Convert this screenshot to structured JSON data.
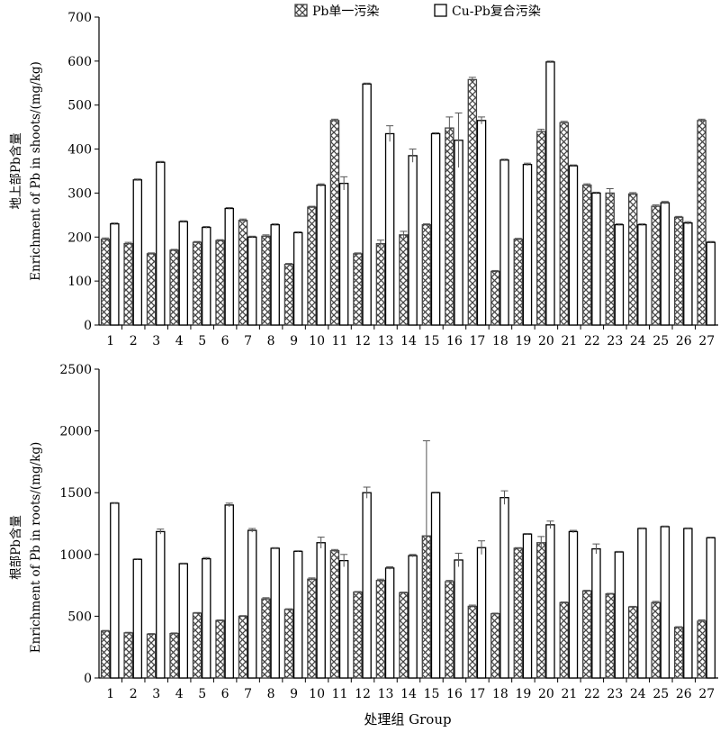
{
  "legend": [
    "Pb单一污染",
    "Cu-Pb复合污染"
  ],
  "xlabel": "处理组 Group",
  "chart_data": [
    {
      "type": "bar",
      "ylabel": [
        "地上部Pb含量",
        "Enrichment of Pb in shoots/(mg/kg)"
      ],
      "ylim": [
        0,
        700
      ],
      "yticks": [
        0,
        100,
        200,
        300,
        400,
        500,
        600,
        700
      ],
      "categories": [
        "1",
        "2",
        "3",
        "4",
        "5",
        "6",
        "7",
        "8",
        "9",
        "10",
        "11",
        "12",
        "13",
        "14",
        "15",
        "16",
        "17",
        "18",
        "19",
        "20",
        "21",
        "22",
        "23",
        "24",
        "25",
        "26",
        "27"
      ],
      "series": [
        {
          "name": "Pb单一污染",
          "pattern": "crosshatch",
          "values": [
            195,
            185,
            162,
            170,
            188,
            192,
            238,
            202,
            138,
            268,
            465,
            162,
            185,
            205,
            228,
            448,
            558,
            122,
            195,
            440,
            460,
            318,
            300,
            298,
            270,
            245,
            465
          ],
          "errors": [
            3,
            3,
            2,
            2,
            2,
            2,
            3,
            3,
            2,
            2,
            3,
            2,
            8,
            8,
            2,
            25,
            5,
            2,
            2,
            5,
            3,
            3,
            10,
            3,
            3,
            2,
            3
          ]
        },
        {
          "name": "Cu-Pb复合污染",
          "pattern": "open",
          "values": [
            230,
            330,
            370,
            235,
            222,
            265,
            200,
            228,
            210,
            318,
            322,
            548,
            435,
            385,
            435,
            420,
            465,
            375,
            365,
            598,
            362,
            300,
            228,
            228,
            278,
            232,
            188
          ],
          "errors": [
            2,
            2,
            2,
            2,
            2,
            2,
            2,
            2,
            2,
            3,
            15,
            2,
            18,
            15,
            2,
            62,
            8,
            2,
            3,
            2,
            2,
            2,
            2,
            2,
            3,
            3,
            2
          ]
        }
      ]
    },
    {
      "type": "bar",
      "ylabel": [
        "根部Pb含量",
        "Enrichment of Pb in roots/(mg/kg)"
      ],
      "ylim": [
        0,
        2500
      ],
      "yticks": [
        0,
        500,
        1000,
        1500,
        2000,
        2500
      ],
      "categories": [
        "1",
        "2",
        "3",
        "4",
        "5",
        "6",
        "7",
        "8",
        "9",
        "10",
        "11",
        "12",
        "13",
        "14",
        "15",
        "16",
        "17",
        "18",
        "19",
        "20",
        "21",
        "22",
        "23",
        "24",
        "25",
        "26",
        "27"
      ],
      "series": [
        {
          "name": "Pb单一污染",
          "pattern": "crosshatch",
          "values": [
            380,
            365,
            355,
            360,
            525,
            465,
            500,
            640,
            555,
            800,
            1030,
            695,
            790,
            690,
            1150,
            780,
            580,
            520,
            1050,
            1095,
            610,
            705,
            680,
            575,
            610,
            410,
            460
          ],
          "errors": [
            5,
            5,
            5,
            5,
            5,
            5,
            5,
            10,
            5,
            10,
            10,
            5,
            10,
            5,
            770,
            10,
            10,
            5,
            5,
            50,
            5,
            5,
            5,
            5,
            10,
            5,
            10
          ]
        },
        {
          "name": "Cu-Pb复合污染",
          "pattern": "open",
          "values": [
            1415,
            960,
            1185,
            925,
            965,
            1400,
            1195,
            1050,
            1025,
            1095,
            950,
            1500,
            890,
            990,
            1500,
            955,
            1055,
            1460,
            1165,
            1240,
            1185,
            1045,
            1020,
            1210,
            1225,
            1210,
            1135
          ],
          "errors": [
            5,
            5,
            20,
            5,
            10,
            15,
            15,
            5,
            5,
            45,
            50,
            45,
            10,
            10,
            5,
            55,
            55,
            55,
            5,
            30,
            10,
            40,
            5,
            5,
            5,
            5,
            5
          ]
        }
      ]
    }
  ]
}
